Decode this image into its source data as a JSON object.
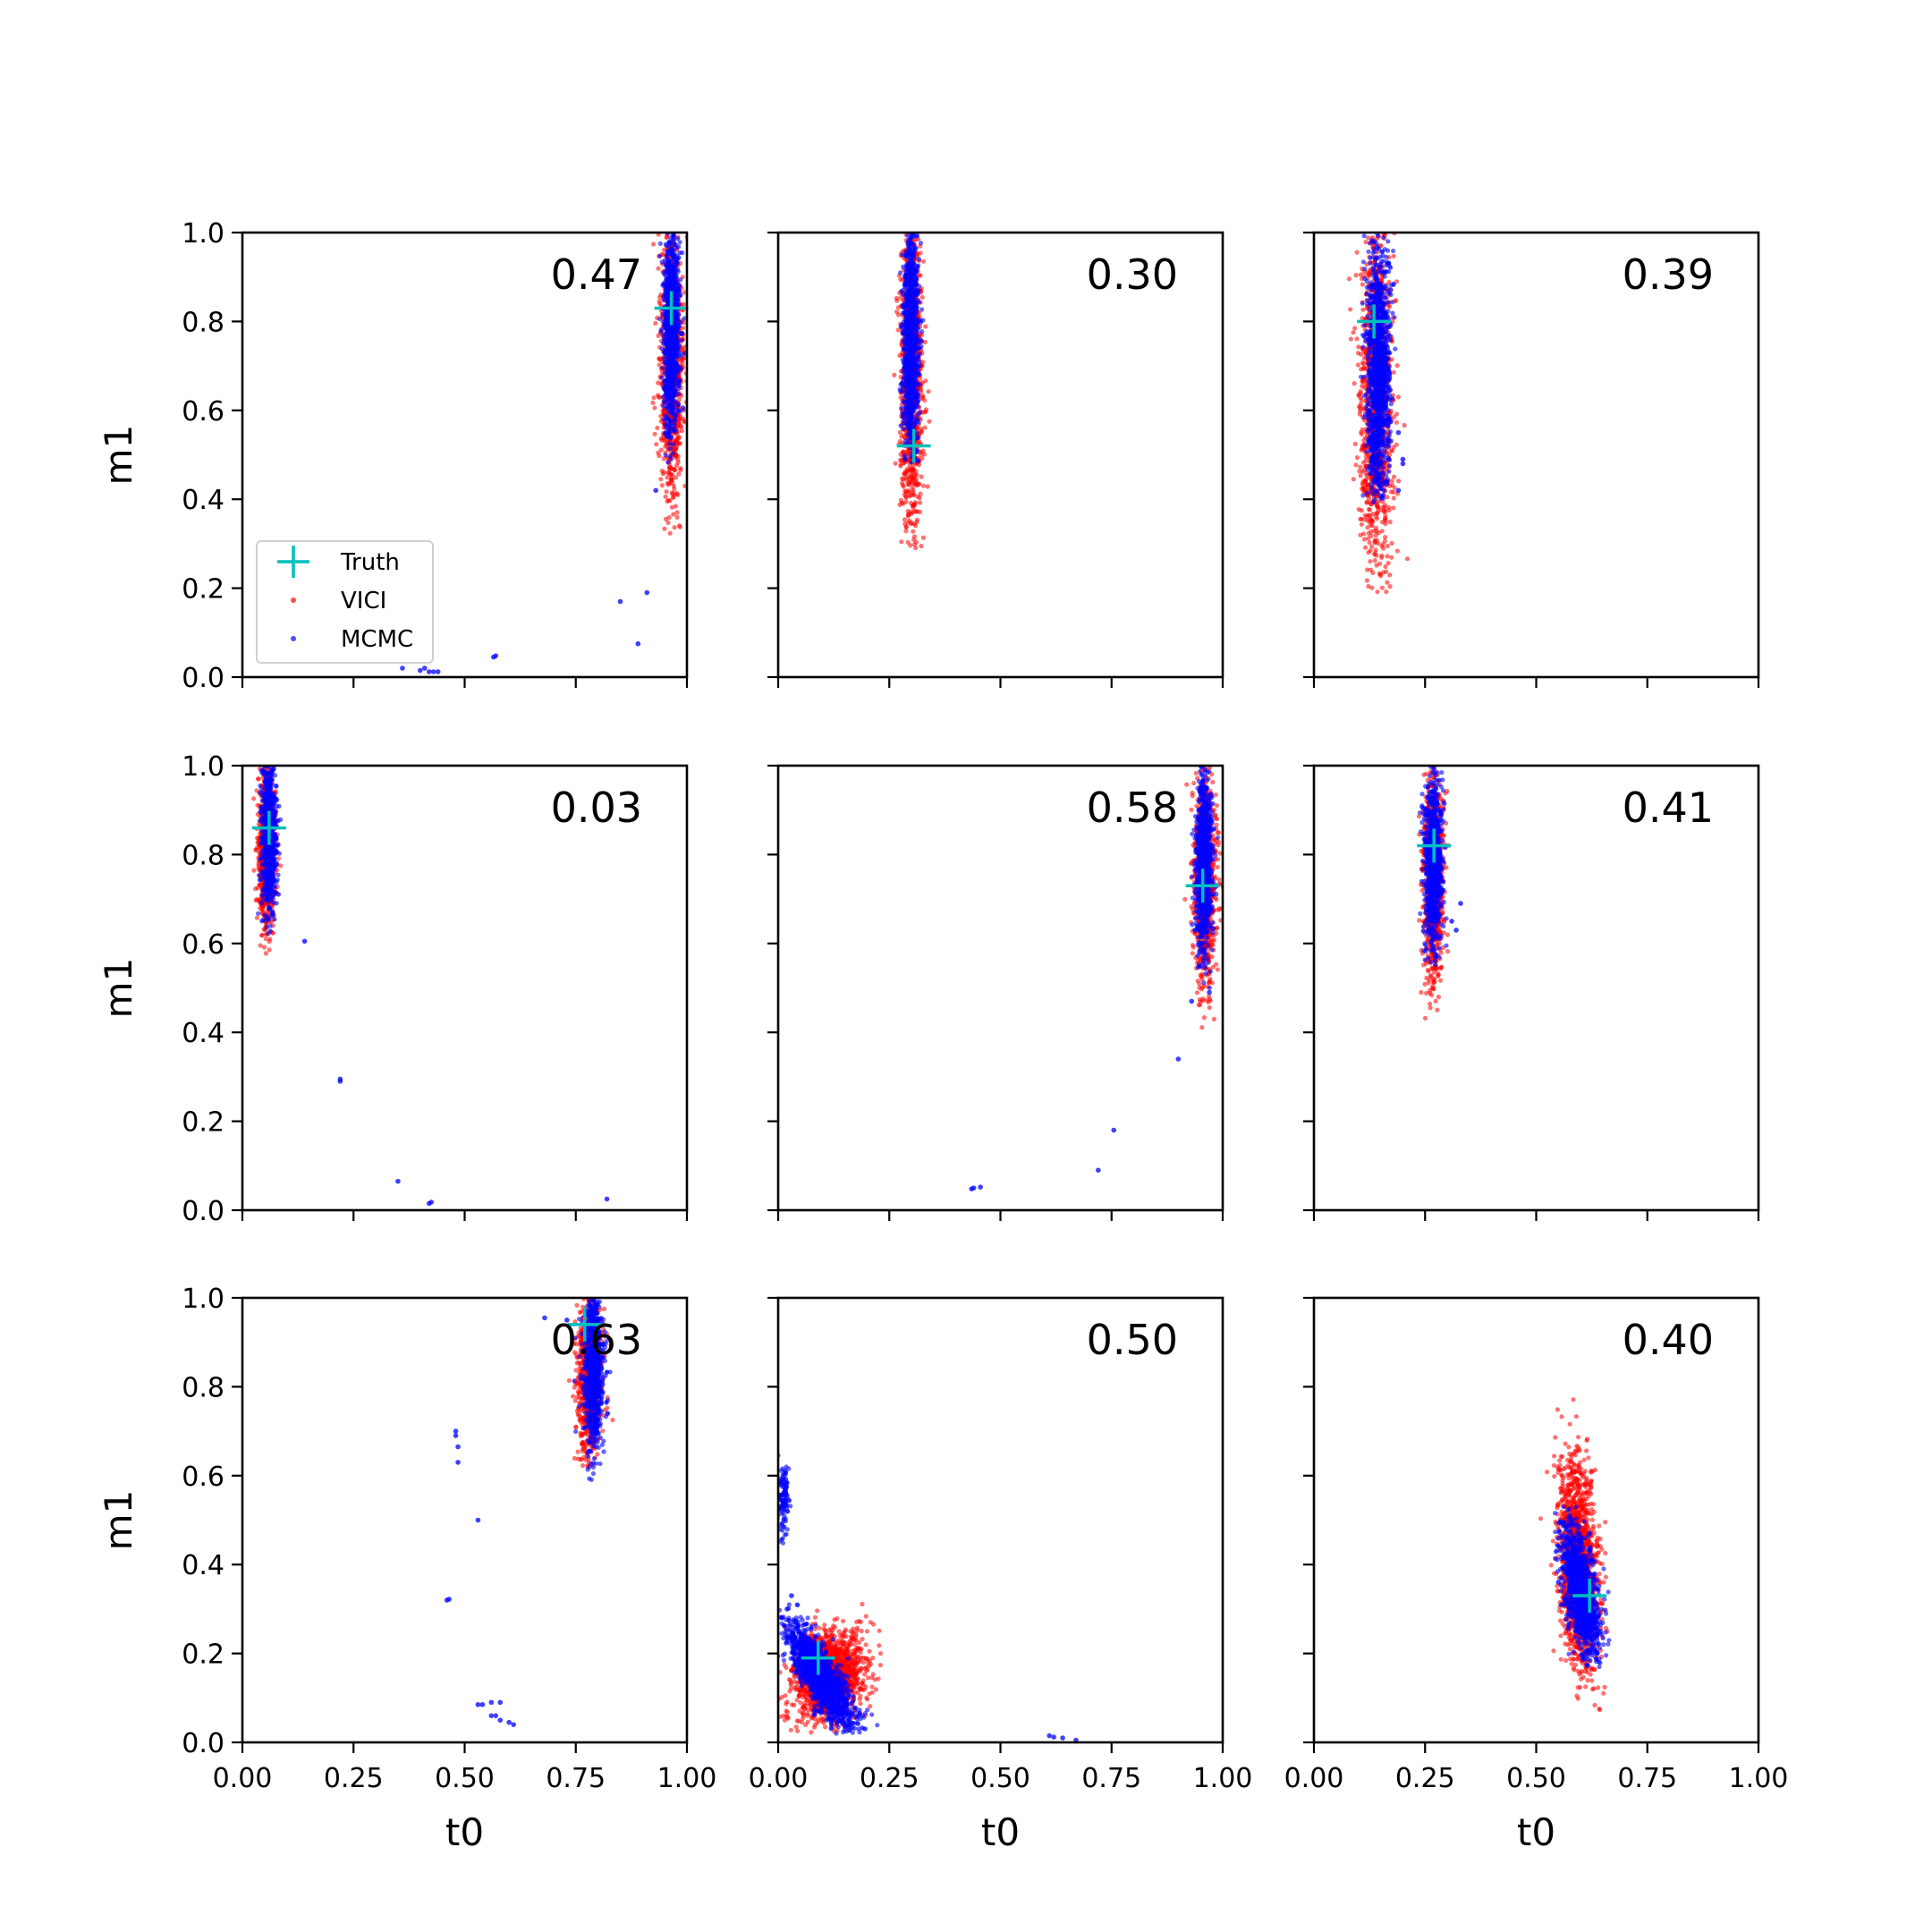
{
  "figure": {
    "background": "#ffffff"
  },
  "legend": {
    "entries": [
      {
        "label": "Truth",
        "color": "#00bfbf",
        "marker": "plus"
      },
      {
        "label": "VICI",
        "color": "#ff0000",
        "marker": "dot"
      },
      {
        "label": "MCMC",
        "color": "#0000ff",
        "marker": "dot"
      }
    ]
  },
  "chart_data": [
    {
      "type": "scatter",
      "score": "0.47",
      "xlabel": "",
      "ylabel": "m1",
      "xlim": [
        0,
        1
      ],
      "ylim": [
        0,
        1
      ],
      "xticks": [
        "0.00",
        "0.25",
        "0.50",
        "0.75",
        "1.00"
      ],
      "yticks": [
        "0.0",
        "0.2",
        "0.4",
        "0.6",
        "0.8",
        "1.0"
      ],
      "show_xticklabels": false,
      "show_yticklabels": true,
      "truth": {
        "x": 0.965,
        "y": 0.83
      },
      "vici_blobs": [
        {
          "cx": 0.965,
          "cy": 0.7,
          "sx": 0.013,
          "sy": 0.16,
          "rho": 0,
          "ymin": 0.32,
          "ymax": 1.0,
          "n": 900
        }
      ],
      "mcmc_blobs": [
        {
          "cx": 0.965,
          "cy": 0.78,
          "sx": 0.009,
          "sy": 0.12,
          "rho": 0,
          "ymin": 0.48,
          "ymax": 1.0,
          "n": 1000
        }
      ],
      "mcmc_outliers": [
        [
          0.93,
          0.42
        ],
        [
          0.85,
          0.17
        ],
        [
          0.91,
          0.19
        ],
        [
          0.89,
          0.075
        ],
        [
          0.565,
          0.045
        ],
        [
          0.57,
          0.048
        ],
        [
          0.4,
          0.015
        ],
        [
          0.42,
          0.012
        ],
        [
          0.43,
          0.012
        ],
        [
          0.44,
          0.012
        ],
        [
          0.41,
          0.02
        ],
        [
          0.36,
          0.02
        ]
      ]
    },
    {
      "type": "scatter",
      "score": "0.30",
      "xlabel": "",
      "ylabel": "",
      "xlim": [
        0,
        1
      ],
      "ylim": [
        0,
        1
      ],
      "xticks": [
        "0.00",
        "0.25",
        "0.50",
        "0.75",
        "1.00"
      ],
      "yticks": [
        "0.0",
        "0.2",
        "0.4",
        "0.6",
        "0.8",
        "1.0"
      ],
      "show_xticklabels": false,
      "show_yticklabels": false,
      "truth": {
        "x": 0.305,
        "y": 0.52
      },
      "vici_blobs": [
        {
          "cx": 0.3,
          "cy": 0.66,
          "sx": 0.013,
          "sy": 0.18,
          "rho": 0,
          "ymin": 0.28,
          "ymax": 1.0,
          "n": 900
        }
      ],
      "mcmc_blobs": [
        {
          "cx": 0.298,
          "cy": 0.75,
          "sx": 0.009,
          "sy": 0.13,
          "rho": 0,
          "ymin": 0.48,
          "ymax": 1.0,
          "n": 1000
        }
      ],
      "mcmc_outliers": []
    },
    {
      "type": "scatter",
      "score": "0.39",
      "xlabel": "",
      "ylabel": "",
      "xlim": [
        0,
        1
      ],
      "ylim": [
        0,
        1
      ],
      "xticks": [
        "0.00",
        "0.25",
        "0.50",
        "0.75",
        "1.00"
      ],
      "yticks": [
        "0.0",
        "0.2",
        "0.4",
        "0.6",
        "0.8",
        "1.0"
      ],
      "show_xticklabels": false,
      "show_yticklabels": false,
      "truth": {
        "x": 0.135,
        "y": 0.8
      },
      "vici_blobs": [
        {
          "cx": 0.14,
          "cy": 0.62,
          "sx": 0.018,
          "sy": 0.2,
          "rho": 0,
          "ymin": 0.19,
          "ymax": 1.0,
          "n": 1100
        }
      ],
      "mcmc_blobs": [
        {
          "cx": 0.145,
          "cy": 0.68,
          "sx": 0.013,
          "sy": 0.15,
          "rho": 0,
          "ymin": 0.39,
          "ymax": 1.0,
          "n": 1200
        }
      ],
      "mcmc_outliers": [
        [
          0.19,
          0.55
        ],
        [
          0.2,
          0.49
        ],
        [
          0.2,
          0.48
        ],
        [
          0.19,
          0.42
        ]
      ]
    },
    {
      "type": "scatter",
      "score": "0.03",
      "xlabel": "",
      "ylabel": "m1",
      "xlim": [
        0,
        1
      ],
      "ylim": [
        0,
        1
      ],
      "xticks": [
        "0.00",
        "0.25",
        "0.50",
        "0.75",
        "1.00"
      ],
      "yticks": [
        "0.0",
        "0.2",
        "0.4",
        "0.6",
        "0.8",
        "1.0"
      ],
      "show_xticklabels": false,
      "show_yticklabels": true,
      "truth": {
        "x": 0.06,
        "y": 0.86
      },
      "vici_blobs": [
        {
          "cx": 0.055,
          "cy": 0.82,
          "sx": 0.01,
          "sy": 0.1,
          "rho": 0,
          "ymin": 0.57,
          "ymax": 1.0,
          "n": 700
        }
      ],
      "mcmc_blobs": [
        {
          "cx": 0.06,
          "cy": 0.84,
          "sx": 0.008,
          "sy": 0.09,
          "rho": 0,
          "ymin": 0.62,
          "ymax": 1.0,
          "n": 800
        }
      ],
      "mcmc_outliers": [
        [
          0.14,
          0.605
        ],
        [
          0.22,
          0.29
        ],
        [
          0.22,
          0.295
        ],
        [
          0.35,
          0.065
        ],
        [
          0.42,
          0.015
        ],
        [
          0.425,
          0.018
        ],
        [
          0.82,
          0.025
        ]
      ]
    },
    {
      "type": "scatter",
      "score": "0.58",
      "xlabel": "",
      "ylabel": "",
      "xlim": [
        0,
        1
      ],
      "ylim": [
        0,
        1
      ],
      "xticks": [
        "0.00",
        "0.25",
        "0.50",
        "0.75",
        "1.00"
      ],
      "yticks": [
        "0.0",
        "0.2",
        "0.4",
        "0.6",
        "0.8",
        "1.0"
      ],
      "show_xticklabels": false,
      "show_yticklabels": false,
      "truth": {
        "x": 0.955,
        "y": 0.73
      },
      "vici_blobs": [
        {
          "cx": 0.96,
          "cy": 0.74,
          "sx": 0.013,
          "sy": 0.12,
          "rho": 0,
          "ymin": 0.36,
          "ymax": 1.0,
          "n": 800
        }
      ],
      "mcmc_blobs": [
        {
          "cx": 0.958,
          "cy": 0.78,
          "sx": 0.009,
          "sy": 0.1,
          "rho": 0,
          "ymin": 0.5,
          "ymax": 1.0,
          "n": 900
        }
      ],
      "mcmc_outliers": [
        [
          0.93,
          0.47
        ],
        [
          0.97,
          0.49
        ],
        [
          0.9,
          0.34
        ],
        [
          0.755,
          0.18
        ],
        [
          0.72,
          0.09
        ],
        [
          0.44,
          0.05
        ],
        [
          0.455,
          0.052
        ],
        [
          0.435,
          0.048
        ]
      ]
    },
    {
      "type": "scatter",
      "score": "0.41",
      "xlabel": "",
      "ylabel": "",
      "xlim": [
        0,
        1
      ],
      "ylim": [
        0,
        1
      ],
      "xticks": [
        "0.00",
        "0.25",
        "0.50",
        "0.75",
        "1.00"
      ],
      "yticks": [
        "0.0",
        "0.2",
        "0.4",
        "0.6",
        "0.8",
        "1.0"
      ],
      "show_xticklabels": false,
      "show_yticklabels": false,
      "truth": {
        "x": 0.27,
        "y": 0.82
      },
      "vici_blobs": [
        {
          "cx": 0.268,
          "cy": 0.74,
          "sx": 0.012,
          "sy": 0.12,
          "rho": 0,
          "ymin": 0.42,
          "ymax": 1.0,
          "n": 800
        }
      ],
      "mcmc_blobs": [
        {
          "cx": 0.268,
          "cy": 0.78,
          "sx": 0.01,
          "sy": 0.1,
          "rho": 0,
          "ymin": 0.55,
          "ymax": 1.0,
          "n": 900
        }
      ],
      "mcmc_outliers": [
        [
          0.33,
          0.69
        ],
        [
          0.32,
          0.63
        ],
        [
          0.31,
          0.65
        ]
      ]
    },
    {
      "type": "scatter",
      "score": "0.63",
      "xlabel": "t0",
      "ylabel": "m1",
      "xlim": [
        0,
        1
      ],
      "ylim": [
        0,
        1
      ],
      "xticks": [
        "0.00",
        "0.25",
        "0.50",
        "0.75",
        "1.00"
      ],
      "yticks": [
        "0.0",
        "0.2",
        "0.4",
        "0.6",
        "0.8",
        "1.0"
      ],
      "show_xticklabels": true,
      "show_yticklabels": true,
      "truth": {
        "x": 0.77,
        "y": 0.94
      },
      "vici_blobs": [
        {
          "cx": 0.78,
          "cy": 0.82,
          "sx": 0.014,
          "sy": 0.1,
          "rho": 0,
          "ymin": 0.62,
          "ymax": 1.0,
          "n": 700
        }
      ],
      "mcmc_blobs": [
        {
          "cx": 0.79,
          "cy": 0.84,
          "sx": 0.011,
          "sy": 0.09,
          "rho": 0,
          "ymin": 0.58,
          "ymax": 1.0,
          "n": 800
        }
      ],
      "mcmc_outliers": [
        [
          0.68,
          0.955
        ],
        [
          0.73,
          0.95
        ],
        [
          0.48,
          0.7
        ],
        [
          0.48,
          0.69
        ],
        [
          0.485,
          0.665
        ],
        [
          0.485,
          0.63
        ],
        [
          0.53,
          0.5
        ],
        [
          0.46,
          0.32
        ],
        [
          0.465,
          0.322
        ],
        [
          0.53,
          0.085
        ],
        [
          0.54,
          0.085
        ],
        [
          0.56,
          0.09
        ],
        [
          0.58,
          0.09
        ],
        [
          0.57,
          0.06
        ],
        [
          0.58,
          0.05
        ],
        [
          0.61,
          0.04
        ],
        [
          0.6,
          0.045
        ],
        [
          0.56,
          0.06
        ]
      ]
    },
    {
      "type": "scatter",
      "score": "0.50",
      "xlabel": "t0",
      "ylabel": "",
      "xlim": [
        0,
        1
      ],
      "ylim": [
        0,
        1
      ],
      "xticks": [
        "0.00",
        "0.25",
        "0.50",
        "0.75",
        "1.00"
      ],
      "yticks": [
        "0.0",
        "0.2",
        "0.4",
        "0.6",
        "0.8",
        "1.0"
      ],
      "show_xticklabels": true,
      "show_yticklabels": false,
      "truth": {
        "x": 0.09,
        "y": 0.19
      },
      "vici_blobs": [
        {
          "cx": 0.115,
          "cy": 0.15,
          "sx": 0.04,
          "sy": 0.05,
          "rho": 0.15,
          "ymin": 0.02,
          "ymax": 0.32,
          "n": 1500
        }
      ],
      "mcmc_blobs": [
        {
          "cx": 0.095,
          "cy": 0.15,
          "sx": 0.035,
          "sy": 0.055,
          "rho": -0.8,
          "ymin": 0.02,
          "ymax": 0.36,
          "n": 1500
        },
        {
          "cx": 0.012,
          "cy": 0.55,
          "sx": 0.006,
          "sy": 0.04,
          "rho": 0,
          "ymin": 0.42,
          "ymax": 0.65,
          "n": 120
        }
      ],
      "mcmc_outliers": [
        [
          0.61,
          0.015
        ],
        [
          0.62,
          0.012
        ],
        [
          0.64,
          0.01
        ],
        [
          0.67,
          0.005
        ],
        [
          0.03,
          0.33
        ],
        [
          0.02,
          0.3
        ]
      ]
    },
    {
      "type": "scatter",
      "score": "0.40",
      "xlabel": "t0",
      "ylabel": "",
      "xlim": [
        0,
        1
      ],
      "ylim": [
        0,
        1
      ],
      "xticks": [
        "0.00",
        "0.25",
        "0.50",
        "0.75",
        "1.00"
      ],
      "yticks": [
        "0.0",
        "0.2",
        "0.4",
        "0.6",
        "0.8",
        "1.0"
      ],
      "show_xticklabels": true,
      "show_yticklabels": false,
      "truth": {
        "x": 0.62,
        "y": 0.33
      },
      "vici_blobs": [
        {
          "cx": 0.595,
          "cy": 0.4,
          "sx": 0.022,
          "sy": 0.12,
          "rho": -0.25,
          "ymin": 0.07,
          "ymax": 0.81,
          "n": 1500
        }
      ],
      "mcmc_blobs": [
        {
          "cx": 0.6,
          "cy": 0.34,
          "sx": 0.02,
          "sy": 0.07,
          "rho": -0.55,
          "ymin": 0.17,
          "ymax": 0.56,
          "n": 1300
        }
      ],
      "mcmc_outliers": [
        [
          0.55,
          0.36
        ],
        [
          0.56,
          0.31
        ]
      ]
    }
  ]
}
